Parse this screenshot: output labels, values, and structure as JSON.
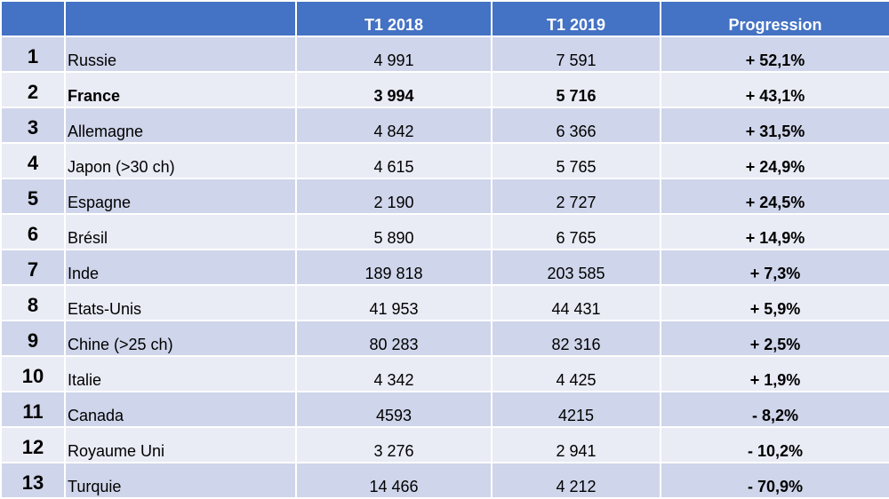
{
  "header": {
    "rank": "",
    "country": "",
    "t1_2018": "T1 2018",
    "t1_2019": "T1 2019",
    "progression": "Progression"
  },
  "rows": [
    {
      "rank": "1",
      "country": "Russie",
      "t1_2018": "4 991",
      "t1_2019": "7 591",
      "progression": "+ 52,1%"
    },
    {
      "rank": "2",
      "country": "France",
      "t1_2018": "3 994",
      "t1_2019": "5 716",
      "progression": "+ 43,1%"
    },
    {
      "rank": "3",
      "country": "Allemagne",
      "t1_2018": "4 842",
      "t1_2019": "6 366",
      "progression": "+ 31,5%"
    },
    {
      "rank": "4",
      "country": "Japon (>30 ch)",
      "t1_2018": "4 615",
      "t1_2019": "5 765",
      "progression": "+ 24,9%"
    },
    {
      "rank": "5",
      "country": "Espagne",
      "t1_2018": "2 190",
      "t1_2019": "2 727",
      "progression": "+ 24,5%"
    },
    {
      "rank": "6",
      "country": "Brésil",
      "t1_2018": "5 890",
      "t1_2019": "6 765",
      "progression": "+ 14,9%"
    },
    {
      "rank": "7",
      "country": "Inde",
      "t1_2018": "189 818",
      "t1_2019": "203 585",
      "progression": "+ 7,3%"
    },
    {
      "rank": "8",
      "country": "Etats-Unis",
      "t1_2018": "41 953",
      "t1_2019": "44 431",
      "progression": "+ 5,9%"
    },
    {
      "rank": "9",
      "country": "Chine (>25 ch)",
      "t1_2018": "80 283",
      "t1_2019": "82 316",
      "progression": "+ 2,5%"
    },
    {
      "rank": "10",
      "country": "Italie",
      "t1_2018": "4 342",
      "t1_2019": "4 425",
      "progression": "+ 1,9%"
    },
    {
      "rank": "11",
      "country": "Canada",
      "t1_2018": "4593",
      "t1_2019": "4215",
      "progression": "- 8,2%"
    },
    {
      "rank": "12",
      "country": "Royaume Uni",
      "t1_2018": "3 276",
      "t1_2019": "2 941",
      "progression": "- 10,2%"
    },
    {
      "rank": "13",
      "country": "Turquie",
      "t1_2018": "14 466",
      "t1_2019": "4 212",
      "progression": "- 70,9%"
    }
  ],
  "colors": {
    "header_bg": "#4472c4",
    "row_dark": "#cfd5ea",
    "row_light": "#e9ebf5"
  }
}
